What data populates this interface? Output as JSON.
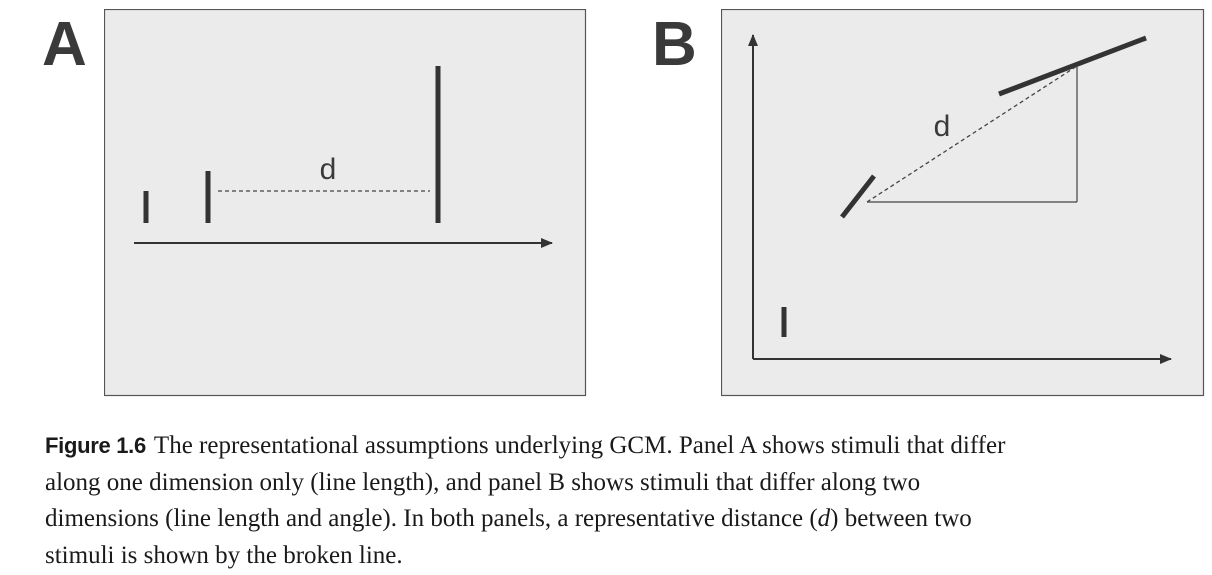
{
  "panels": {
    "a": {
      "letter": "A",
      "distance_label": "d"
    },
    "b": {
      "letter": "B",
      "distance_label": "d"
    }
  },
  "caption": {
    "label": "Figure 1.6",
    "line1": "The representational assumptions underlying GCM. Panel A shows stimuli that differ",
    "line2": "along one dimension only (line length), and panel B shows stimuli that differ along two",
    "line3": "dimensions (line length and angle). In both panels, a representative distance (",
    "line3_italic": "d",
    "line3_end": ") between two",
    "line4": "stimuli is shown by the broken line."
  },
  "colors": {
    "panel_background": "#ebebeb",
    "panel_border": "#555555",
    "stroke": "#333333"
  }
}
